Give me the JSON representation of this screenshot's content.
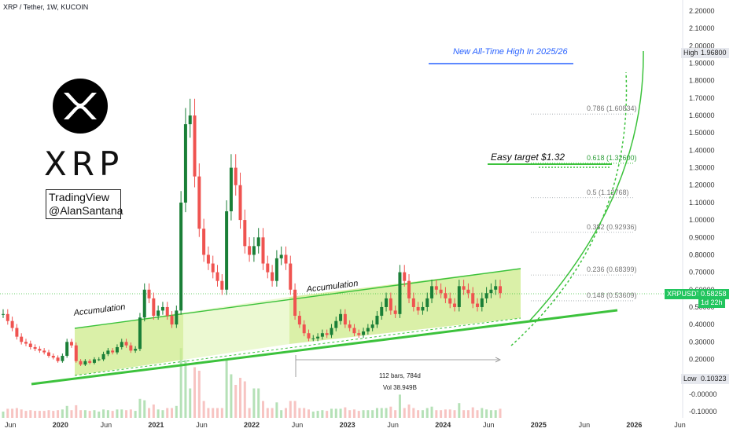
{
  "header": {
    "title": "XRP / Tether, 1W, KUCOIN"
  },
  "branding": {
    "ticker_word": "XRP",
    "credit_line1": "TradingView",
    "credit_line2": "@AlanSantana"
  },
  "annotations": {
    "ath": "New All-Time High In 2025/26",
    "easy_target": "Easy target $1.32",
    "accumulation_left": "Accumulation",
    "accumulation_right": "Accumulation"
  },
  "measure": {
    "bars": "112 bars, 784d",
    "volume": "Vol 38.949B"
  },
  "price_tags": {
    "high_label": "High",
    "high_value": "1.96800",
    "symbol": "XRPUSDT",
    "last_value": "0.58258",
    "countdown": "1d 22h",
    "low_label": "Low",
    "low_value": "0.10323"
  },
  "colors": {
    "up": "#1a7f37",
    "down": "#ef5350",
    "channel_fill": "#d4f29a",
    "trend": "#3cc23c",
    "ath_line": "#2962ff"
  },
  "chart_data": {
    "type": "line",
    "title": "XRP / Tether, 1W, KUCOIN",
    "x_ticks": [
      "Jun",
      "2020",
      "Jun",
      "2021",
      "Jun",
      "2022",
      "Jun",
      "2023",
      "Jun",
      "2024",
      "Jun",
      "2025",
      "Jun",
      "2026",
      "Jun"
    ],
    "y_ticks": [
      "2.20000",
      "2.10000",
      "2.00000",
      "1.90000",
      "1.80000",
      "1.70000",
      "1.60000",
      "1.50000",
      "1.40000",
      "1.30000",
      "1.20000",
      "1.10000",
      "1.00000",
      "0.90000",
      "0.80000",
      "0.70000",
      "0.60000",
      "0.50000",
      "0.40000",
      "0.30000",
      "0.20000",
      "0.10000",
      "-0.00000",
      "-0.10000"
    ],
    "ylim": [
      -0.1,
      2.2
    ],
    "series": [
      {
        "values": [
          0.46,
          0.42,
          0.38,
          0.33,
          0.3,
          0.29,
          0.27,
          0.26,
          0.25,
          0.24,
          0.22,
          0.21,
          0.19,
          0.22,
          0.3,
          0.28,
          0.19,
          0.17,
          0.19,
          0.18,
          0.2,
          0.2,
          0.23,
          0.25,
          0.24,
          0.27,
          0.3,
          0.28,
          0.25,
          0.26,
          0.44,
          0.6,
          0.55,
          0.45,
          0.48,
          0.5,
          0.45,
          0.4,
          0.48,
          1.1,
          1.55,
          1.6,
          1.25,
          0.95,
          0.8,
          0.75,
          0.7,
          0.65,
          0.6,
          1.05,
          1.3,
          1.2,
          1.0,
          0.85,
          0.8,
          0.85,
          0.9,
          0.75,
          0.7,
          0.65,
          0.78,
          0.8,
          0.75,
          0.6,
          0.45,
          0.4,
          0.35,
          0.32,
          0.32,
          0.33,
          0.35,
          0.34,
          0.38,
          0.42,
          0.46,
          0.4,
          0.38,
          0.35,
          0.34,
          0.36,
          0.38,
          0.4,
          0.45,
          0.5,
          0.55,
          0.48,
          0.46,
          0.7,
          0.65,
          0.55,
          0.5,
          0.48,
          0.5,
          0.55,
          0.62,
          0.6,
          0.58,
          0.55,
          0.52,
          0.5,
          0.62,
          0.6,
          0.58,
          0.52,
          0.5,
          0.55,
          0.58,
          0.6,
          0.62,
          0.58
        ]
      }
    ],
    "fib_levels": [
      {
        "label": "0.786 (1.60834)",
        "value": 1.60834
      },
      {
        "label": "0.618 (1.32600)",
        "value": 1.326
      },
      {
        "label": "0.5 (1.12768)",
        "value": 1.12768
      },
      {
        "label": "0.382 (0.92936)",
        "value": 0.92936
      },
      {
        "label": "0.236 (0.68399)",
        "value": 0.68399
      },
      {
        "label": "0.148 (0.53609)",
        "value": 0.53609
      }
    ],
    "high": 1.968,
    "low": 0.10323,
    "last": 0.58258
  }
}
